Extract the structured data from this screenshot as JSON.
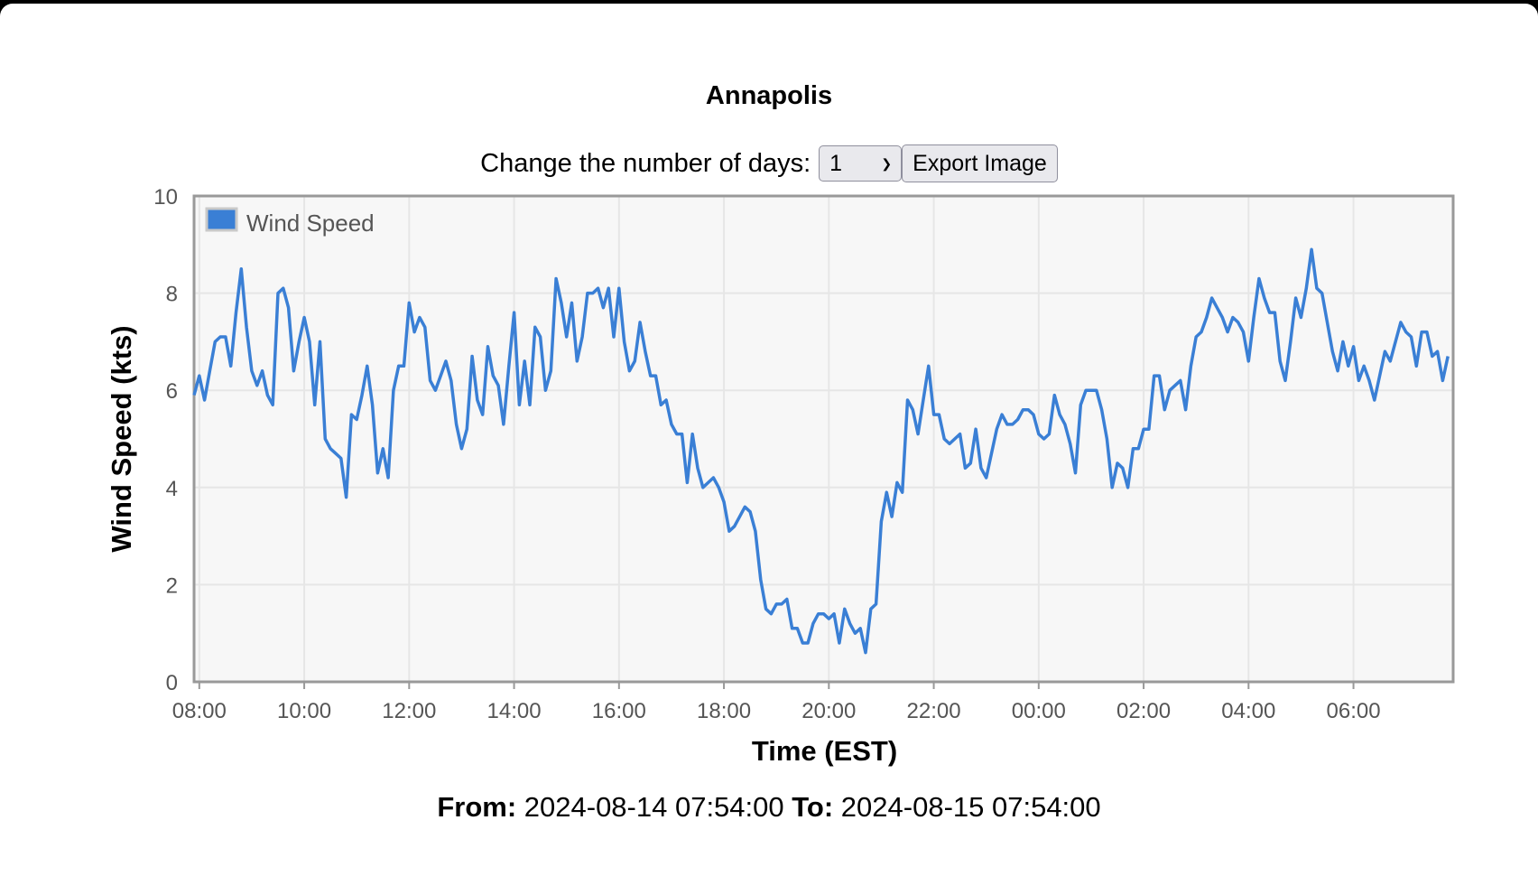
{
  "page": {
    "title": "Annapolis"
  },
  "controls": {
    "days_label": "Change the number of days:",
    "days_value": "1",
    "export_label": "Export Image"
  },
  "range": {
    "from_label": "From:",
    "from_value": "2024-08-14 07:54:00",
    "to_label": "To:",
    "to_value": "2024-08-15 07:54:00"
  },
  "colors": {
    "series": "#3a7fd5",
    "plot_bg": "#f7f7f7",
    "grid": "#e6e6e6",
    "axis": "#999999"
  },
  "chart_data": {
    "type": "line",
    "xlabel": "Time (EST)",
    "ylabel": "Wind Speed (kts)",
    "ylim": [
      0,
      10
    ],
    "yticks": [
      "0",
      "2",
      "4",
      "6",
      "8",
      "10"
    ],
    "xticks": [
      "08:00",
      "10:00",
      "12:00",
      "14:00",
      "16:00",
      "18:00",
      "20:00",
      "22:00",
      "00:00",
      "02:00",
      "04:00",
      "06:00"
    ],
    "xlim": [
      "2024-08-14 07:54",
      "2024-08-15 07:54"
    ],
    "grid": true,
    "legend": "top-left",
    "series": [
      {
        "name": "Wind Speed",
        "sample_interval_minutes": 6,
        "values": [
          5.9,
          6.3,
          5.8,
          6.4,
          7.0,
          7.1,
          7.1,
          6.5,
          7.6,
          8.5,
          7.3,
          6.4,
          6.1,
          6.4,
          5.9,
          5.7,
          8.0,
          8.1,
          7.7,
          6.4,
          7.0,
          7.5,
          7.0,
          5.7,
          7.0,
          5.0,
          4.8,
          4.7,
          4.6,
          3.8,
          5.5,
          5.4,
          5.9,
          6.5,
          5.7,
          4.3,
          4.8,
          4.2,
          6.0,
          6.5,
          6.5,
          7.8,
          7.2,
          7.5,
          7.3,
          6.2,
          6.0,
          6.3,
          6.6,
          6.2,
          5.3,
          4.8,
          5.2,
          6.7,
          5.8,
          5.5,
          6.9,
          6.3,
          6.1,
          5.3,
          6.5,
          7.6,
          5.7,
          6.6,
          5.7,
          7.3,
          7.1,
          6.0,
          6.4,
          8.3,
          7.8,
          7.1,
          7.8,
          6.6,
          7.1,
          8.0,
          8.0,
          8.1,
          7.7,
          8.1,
          7.1,
          8.1,
          7.0,
          6.4,
          6.6,
          7.4,
          6.8,
          6.3,
          6.3,
          5.7,
          5.8,
          5.3,
          5.1,
          5.1,
          4.1,
          5.1,
          4.4,
          4.0,
          4.1,
          4.2,
          4.0,
          3.7,
          3.1,
          3.2,
          3.4,
          3.6,
          3.5,
          3.1,
          2.1,
          1.5,
          1.4,
          1.6,
          1.6,
          1.7,
          1.1,
          1.1,
          0.8,
          0.8,
          1.2,
          1.4,
          1.4,
          1.3,
          1.4,
          0.8,
          1.5,
          1.2,
          1.0,
          1.1,
          0.6,
          1.5,
          1.6,
          3.3,
          3.9,
          3.4,
          4.1,
          3.9,
          5.8,
          5.6,
          5.1,
          5.8,
          6.5,
          5.5,
          5.5,
          5.0,
          4.9,
          5.0,
          5.1,
          4.4,
          4.5,
          5.2,
          4.4,
          4.2,
          4.7,
          5.2,
          5.5,
          5.3,
          5.3,
          5.4,
          5.6,
          5.6,
          5.5,
          5.1,
          5.0,
          5.1,
          5.9,
          5.5,
          5.3,
          4.9,
          4.3,
          5.7,
          6.0,
          6.0,
          6.0,
          5.6,
          5.0,
          4.0,
          4.5,
          4.4,
          4.0,
          4.8,
          4.8,
          5.2,
          5.2,
          6.3,
          6.3,
          5.6,
          6.0,
          6.1,
          6.2,
          5.6,
          6.5,
          7.1,
          7.2,
          7.5,
          7.9,
          7.7,
          7.5,
          7.2,
          7.5,
          7.4,
          7.2,
          6.6,
          7.5,
          8.3,
          7.9,
          7.6,
          7.6,
          6.6,
          6.2,
          7.0,
          7.9,
          7.5,
          8.1,
          8.9,
          8.1,
          8.0,
          7.4,
          6.8,
          6.4,
          7.0,
          6.5,
          6.9,
          6.2,
          6.5,
          6.2,
          5.8,
          6.3,
          6.8,
          6.6,
          7.0,
          7.4,
          7.2,
          7.1,
          6.5,
          7.2,
          7.2,
          6.7,
          6.8,
          6.2,
          6.7
        ]
      }
    ]
  }
}
